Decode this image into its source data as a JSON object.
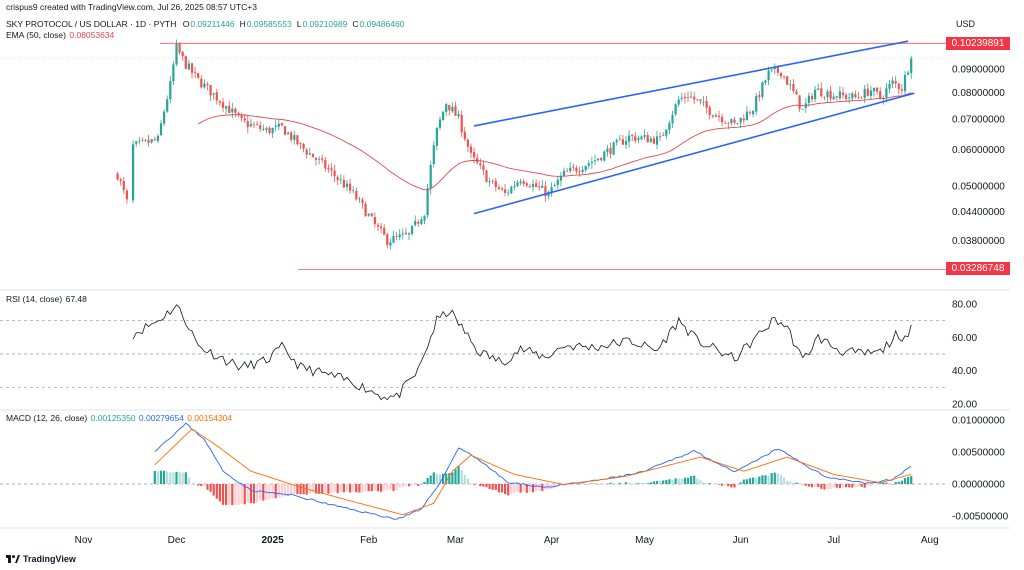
{
  "attribution": "crispus9 created with TradingView.com, Jul 26, 2025 08:57 UTC+3",
  "logo_text": "TradingView",
  "main_header": {
    "symbol": "SKY PROTOCOL / US DOLLAR · 1D · PYTH",
    "ohlc": [
      {
        "k": "O",
        "v": "0.09211446"
      },
      {
        "k": "H",
        "v": "0.09585553"
      },
      {
        "k": "L",
        "v": "0.09210989"
      },
      {
        "k": "C",
        "v": "0.09486460"
      }
    ],
    "ema_label": "EMA (50, close)",
    "ema_value": "0.08053634"
  },
  "rsi_header": {
    "label": "RSI (14, close)",
    "value": "67.48"
  },
  "macd_header": {
    "label": "MACD (12, 26, close)",
    "values": [
      "0.00125350",
      "0.00279654",
      "0.00154304"
    ]
  },
  "currency": "USD",
  "price_tags": {
    "top": "0.10239891",
    "bottom": "0.03286748"
  },
  "colors": {
    "up": "#26a69a",
    "down": "#ef5350",
    "ema": "#e04a4a",
    "channel": "#2962ff",
    "level": "#f23645",
    "rsi": "#131722",
    "macd": "#2962ff",
    "signal": "#ff6d00",
    "hist_pos": "#26a69a",
    "hist_pos_light": "#b2dfdb",
    "hist_neg": "#ef5350",
    "hist_neg_light": "#ffcdd2"
  },
  "chart_data": {
    "type": "candlestick",
    "timeframe": "1D",
    "x_labels": [
      "Nov",
      "Dec",
      "2025",
      "Feb",
      "Mar",
      "Apr",
      "May",
      "Jun",
      "Jul",
      "Aug"
    ],
    "main_axis_ticks": [
      "0.09000000",
      "0.08000000",
      "0.07000000",
      "0.06000000",
      "0.05000000",
      "0.04400000",
      "0.03800000"
    ],
    "horizontal_levels": [
      0.10239891,
      0.03286748
    ],
    "price_waypoints": [
      [
        "2024-11-12",
        0.053
      ],
      [
        "2024-11-15",
        0.046
      ],
      [
        "2024-11-17",
        0.061
      ],
      [
        "2024-11-25",
        0.063
      ],
      [
        "2024-11-29",
        0.083
      ],
      [
        "2024-12-01",
        0.1
      ],
      [
        "2024-12-04",
        0.092
      ],
      [
        "2024-12-08",
        0.085
      ],
      [
        "2024-12-14",
        0.078
      ],
      [
        "2024-12-22",
        0.069
      ],
      [
        "2024-12-30",
        0.066
      ],
      [
        "2025-01-04",
        0.067
      ],
      [
        "2025-01-10",
        0.061
      ],
      [
        "2025-01-18",
        0.055
      ],
      [
        "2025-01-27",
        0.048
      ],
      [
        "2025-02-03",
        0.041
      ],
      [
        "2025-02-07",
        0.038
      ],
      [
        "2025-02-14",
        0.039
      ],
      [
        "2025-02-19",
        0.044
      ],
      [
        "2025-02-23",
        0.066
      ],
      [
        "2025-02-26",
        0.076
      ],
      [
        "2025-03-02",
        0.07
      ],
      [
        "2025-03-06",
        0.058
      ],
      [
        "2025-03-12",
        0.051
      ],
      [
        "2025-03-17",
        0.048
      ],
      [
        "2025-03-22",
        0.052
      ],
      [
        "2025-03-31",
        0.048
      ],
      [
        "2025-04-05",
        0.053
      ],
      [
        "2025-04-15",
        0.057
      ],
      [
        "2025-04-26",
        0.064
      ],
      [
        "2025-05-06",
        0.063
      ],
      [
        "2025-05-12",
        0.077
      ],
      [
        "2025-05-15",
        0.079
      ],
      [
        "2025-05-22",
        0.073
      ],
      [
        "2025-05-30",
        0.068
      ],
      [
        "2025-06-05",
        0.074
      ],
      [
        "2025-06-10",
        0.088
      ],
      [
        "2025-06-14",
        0.089
      ],
      [
        "2025-06-21",
        0.073
      ],
      [
        "2025-06-25",
        0.081
      ],
      [
        "2025-07-01",
        0.079
      ],
      [
        "2025-07-08",
        0.078
      ],
      [
        "2025-07-13",
        0.081
      ],
      [
        "2025-07-16",
        0.078
      ],
      [
        "2025-07-20",
        0.084
      ],
      [
        "2025-07-23",
        0.082
      ],
      [
        "2025-07-26",
        0.0949
      ]
    ],
    "channel": {
      "upper": [
        [
          "2025-03-07",
          0.0676
        ],
        [
          "2025-07-25",
          0.1035
        ]
      ],
      "lower": [
        [
          "2025-03-07",
          0.0435
        ],
        [
          "2025-07-27",
          0.0797
        ]
      ]
    },
    "rsi": {
      "axis": [
        80,
        60,
        40,
        20
      ],
      "bands": [
        70,
        50,
        30
      ],
      "waypoints": [
        [
          "2024-11-17",
          62
        ],
        [
          "2024-11-25",
          70
        ],
        [
          "2024-12-01",
          79
        ],
        [
          "2024-12-04",
          70
        ],
        [
          "2024-12-08",
          55
        ],
        [
          "2024-12-15",
          48
        ],
        [
          "2024-12-22",
          42
        ],
        [
          "2024-12-30",
          46
        ],
        [
          "2025-01-04",
          54
        ],
        [
          "2025-01-10",
          42
        ],
        [
          "2025-01-18",
          38
        ],
        [
          "2025-01-27",
          33
        ],
        [
          "2025-02-05",
          25
        ],
        [
          "2025-02-10",
          24
        ],
        [
          "2025-02-17",
          40
        ],
        [
          "2025-02-23",
          70
        ],
        [
          "2025-02-27",
          76
        ],
        [
          "2025-03-03",
          66
        ],
        [
          "2025-03-08",
          52
        ],
        [
          "2025-03-16",
          45
        ],
        [
          "2025-03-22",
          53
        ],
        [
          "2025-03-30",
          48
        ],
        [
          "2025-04-05",
          55
        ],
        [
          "2025-04-15",
          54
        ],
        [
          "2025-04-26",
          58
        ],
        [
          "2025-05-05",
          52
        ],
        [
          "2025-05-12",
          70
        ],
        [
          "2025-05-18",
          58
        ],
        [
          "2025-05-30",
          47
        ],
        [
          "2025-06-05",
          58
        ],
        [
          "2025-06-12",
          71
        ],
        [
          "2025-06-16",
          66
        ],
        [
          "2025-06-21",
          46
        ],
        [
          "2025-06-26",
          60
        ],
        [
          "2025-07-03",
          52
        ],
        [
          "2025-07-10",
          50
        ],
        [
          "2025-07-16",
          51
        ],
        [
          "2025-07-21",
          61
        ],
        [
          "2025-07-23",
          55
        ],
        [
          "2025-07-26",
          67.48
        ]
      ]
    },
    "macd": {
      "axis": [
        "0.01000000",
        "0.00500000",
        "0.00000000",
        "-0.00500000"
      ],
      "macd_waypoints": [
        [
          "2024-11-24",
          0.0052
        ],
        [
          "2024-12-04",
          0.0094
        ],
        [
          "2024-12-10",
          0.007
        ],
        [
          "2024-12-16",
          0.002
        ],
        [
          "2024-12-25",
          -0.001
        ],
        [
          "2025-01-08",
          -0.0018
        ],
        [
          "2025-01-22",
          -0.0035
        ],
        [
          "2025-02-10",
          -0.0055
        ],
        [
          "2025-02-18",
          -0.004
        ],
        [
          "2025-02-25",
          0.001
        ],
        [
          "2025-03-02",
          0.0057
        ],
        [
          "2025-03-08",
          0.004
        ],
        [
          "2025-03-18",
          0.0002
        ],
        [
          "2025-03-30",
          -0.0005
        ],
        [
          "2025-04-15",
          0.0005
        ],
        [
          "2025-04-30",
          0.0018
        ],
        [
          "2025-05-17",
          0.0052
        ],
        [
          "2025-05-30",
          0.0018
        ],
        [
          "2025-06-13",
          0.0055
        ],
        [
          "2025-06-28",
          0.0012
        ],
        [
          "2025-07-12",
          0.0001
        ],
        [
          "2025-07-20",
          0.0007
        ],
        [
          "2025-07-26",
          0.0028
        ]
      ],
      "signal_waypoints": [
        [
          "2024-11-24",
          0.003
        ],
        [
          "2024-12-06",
          0.0086
        ],
        [
          "2024-12-14",
          0.006
        ],
        [
          "2024-12-25",
          0.002
        ],
        [
          "2025-01-10",
          -0.0005
        ],
        [
          "2025-01-25",
          -0.0025
        ],
        [
          "2025-02-12",
          -0.0048
        ],
        [
          "2025-02-22",
          -0.003
        ],
        [
          "2025-02-28",
          0.002
        ],
        [
          "2025-03-06",
          0.0045
        ],
        [
          "2025-03-20",
          0.0015
        ],
        [
          "2025-04-05",
          -0.0001
        ],
        [
          "2025-04-25",
          0.0012
        ],
        [
          "2025-05-19",
          0.0042
        ],
        [
          "2025-06-02",
          0.002
        ],
        [
          "2025-06-16",
          0.0042
        ],
        [
          "2025-07-01",
          0.0015
        ],
        [
          "2025-07-16",
          0.0002
        ],
        [
          "2025-07-26",
          0.0015
        ]
      ]
    }
  }
}
